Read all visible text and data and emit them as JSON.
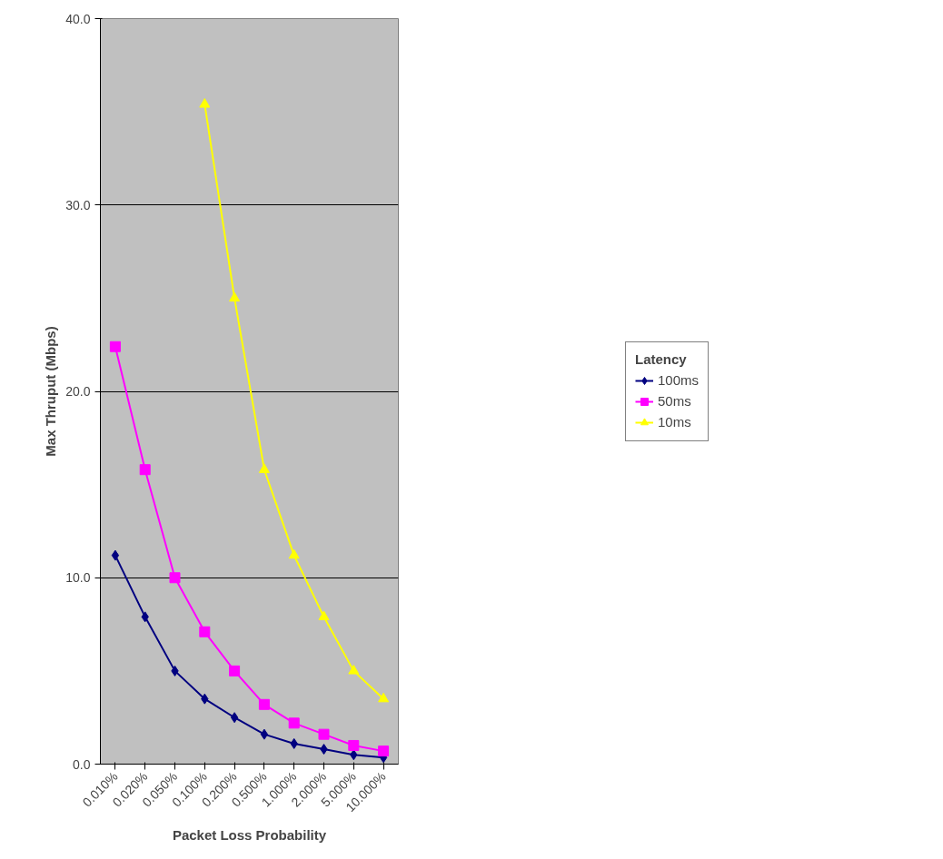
{
  "chart_data": {
    "type": "line",
    "xlabel": "Packet Loss Probability",
    "ylabel": "Max Thruput (Mbps)",
    "legend_title": "Latency",
    "categories": [
      "0.010%",
      "0.020%",
      "0.050%",
      "0.100%",
      "0.200%",
      "0.500%",
      "1.000%",
      "2.000%",
      "5.000%",
      "10.000%"
    ],
    "series": [
      {
        "name": "100ms",
        "color": "#000080",
        "marker": "diamond",
        "values": [
          11.2,
          7.9,
          5.0,
          3.5,
          2.5,
          1.6,
          1.1,
          0.8,
          0.5,
          0.35
        ]
      },
      {
        "name": "50ms",
        "color": "#ff00ff",
        "marker": "square",
        "values": [
          22.4,
          15.8,
          10.0,
          7.1,
          5.0,
          3.2,
          2.2,
          1.6,
          1.0,
          0.7
        ]
      },
      {
        "name": "10ms",
        "color": "#ffff00",
        "marker": "triangle",
        "values": [
          null,
          null,
          null,
          35.4,
          25.0,
          15.8,
          11.2,
          7.9,
          5.0,
          3.5
        ]
      }
    ],
    "ylim": [
      0,
      40
    ],
    "yticks": [
      {
        "value": 0,
        "label": "0.0"
      },
      {
        "value": 10,
        "label": "10.0"
      },
      {
        "value": 20,
        "label": "20.0"
      },
      {
        "value": 30,
        "label": "30.0"
      },
      {
        "value": 40,
        "label": "40.0"
      }
    ],
    "grid": "y",
    "legend": "right",
    "line_style": "solid"
  }
}
